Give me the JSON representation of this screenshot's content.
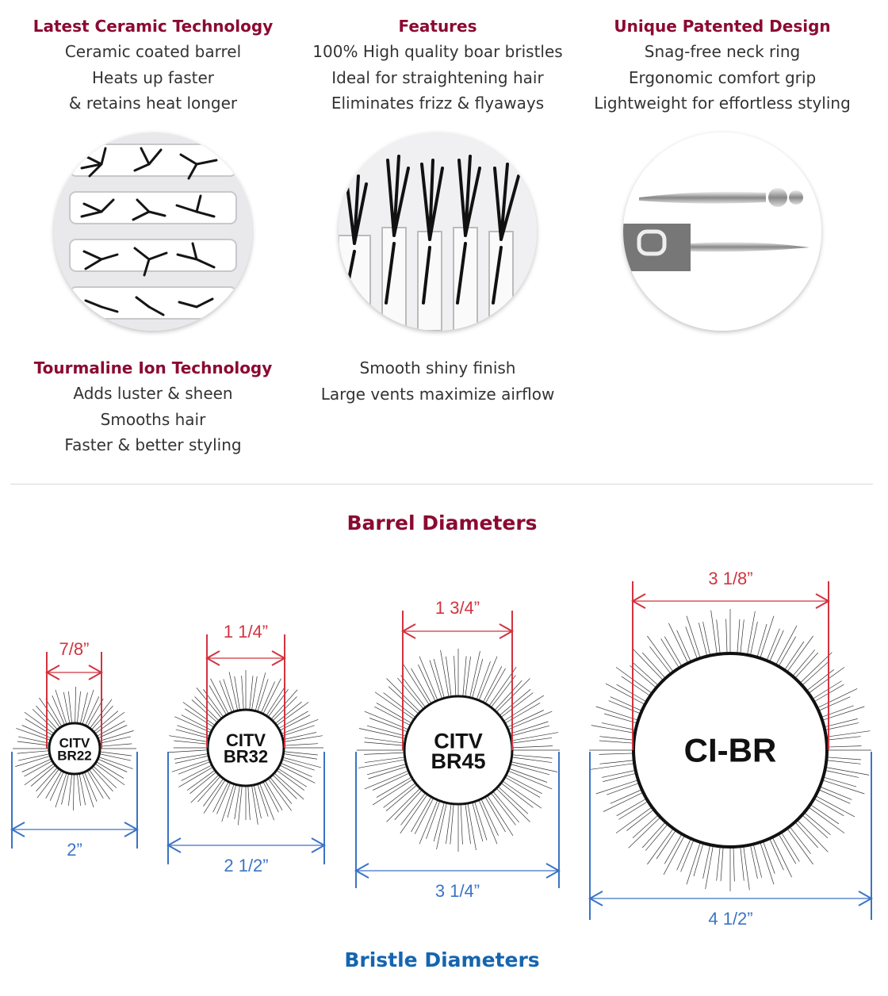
{
  "features": [
    {
      "title": "Latest Ceramic Technology",
      "lines": [
        "Ceramic coated barrel",
        "Heats up faster",
        "& retains heat longer"
      ]
    },
    {
      "title": "Features",
      "lines": [
        "100% High quality boar bristles",
        "Ideal for straightening hair",
        "Eliminates frizz & flyaways"
      ]
    },
    {
      "title": "Unique Patented Design",
      "lines": [
        "Snag-free neck ring",
        "Ergonomic comfort grip",
        "Lightweight for effortless styling"
      ]
    },
    {
      "title": "Tourmaline Ion Technology",
      "lines": [
        "Adds luster & sheen",
        "Smooths hair",
        "Faster & better styling"
      ]
    },
    {
      "title": "",
      "lines": [
        "Smooth shiny finish",
        "Large vents maximize airflow"
      ]
    }
  ],
  "photos": [
    "ceramic-barrel-vents-photo",
    "boar-bristles-photo",
    "neck-ring-pins-photo"
  ],
  "barrel_title": "Barrel Diameters",
  "bristle_title": "Bristle Diameters",
  "brushes": [
    {
      "model": [
        "CITV",
        "BR22"
      ],
      "barrel": "7/8”",
      "bristle": "2”"
    },
    {
      "model": [
        "CITV",
        "BR32"
      ],
      "barrel": "1 1/4”",
      "bristle": "2 1/2”"
    },
    {
      "model": [
        "CITV",
        "BR45"
      ],
      "barrel": "1 3/4”",
      "bristle": "3 1/4”"
    },
    {
      "model": [
        "CI-BR"
      ],
      "barrel": "3 1/8”",
      "bristle": "4 1/2”"
    }
  ],
  "colors": {
    "heading": "#8b0a32",
    "barrel_dim": "#d2333f",
    "bristle_dim": "#3b74c4",
    "bristle_title": "#1565b0"
  }
}
